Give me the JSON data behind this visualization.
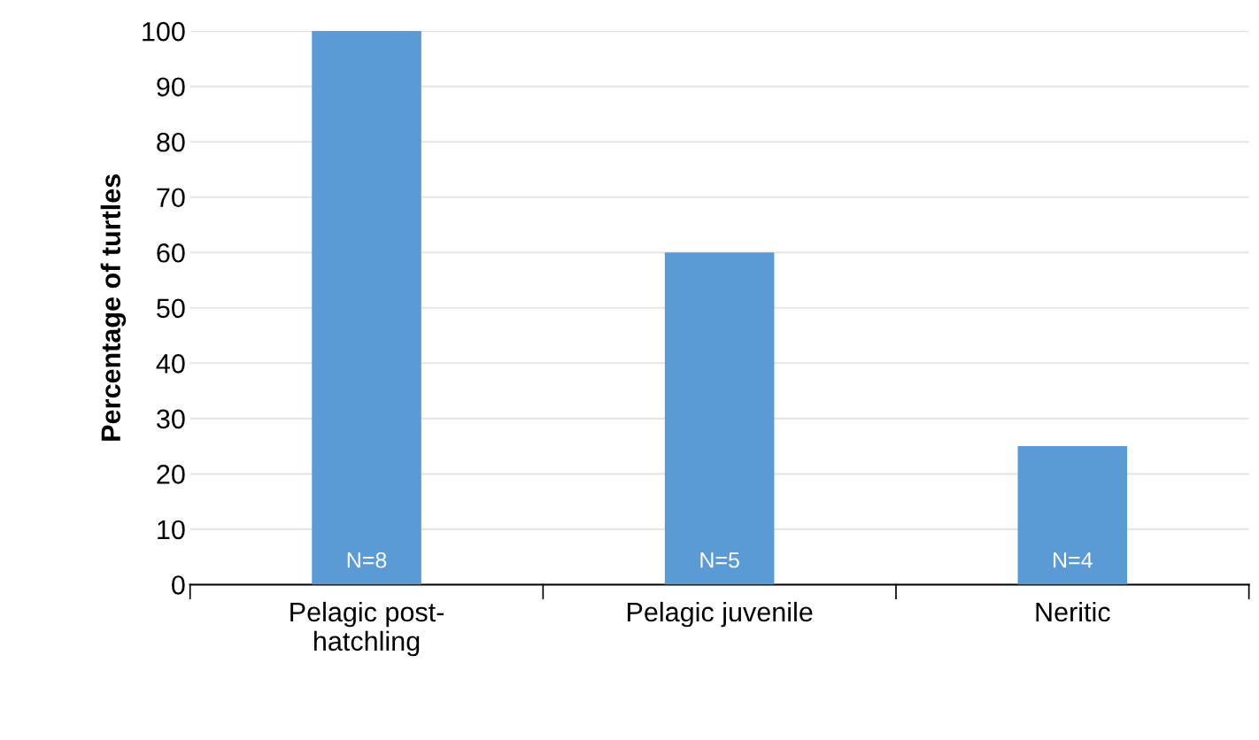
{
  "chart_data": {
    "type": "bar",
    "ylabel": "Percentage of turtles",
    "categories": [
      "Pelagic post-\nhatchling",
      "Pelagic juvenile",
      "Neritic"
    ],
    "values": [
      100,
      60,
      25
    ],
    "color": "#5b9bd5",
    "ylim": [
      0,
      100
    ],
    "yticks": [
      0,
      10,
      20,
      30,
      40,
      50,
      60,
      70,
      80,
      90,
      100
    ],
    "grid": "y",
    "annotations": [
      "N=8",
      "N=5",
      "N=4"
    ]
  }
}
